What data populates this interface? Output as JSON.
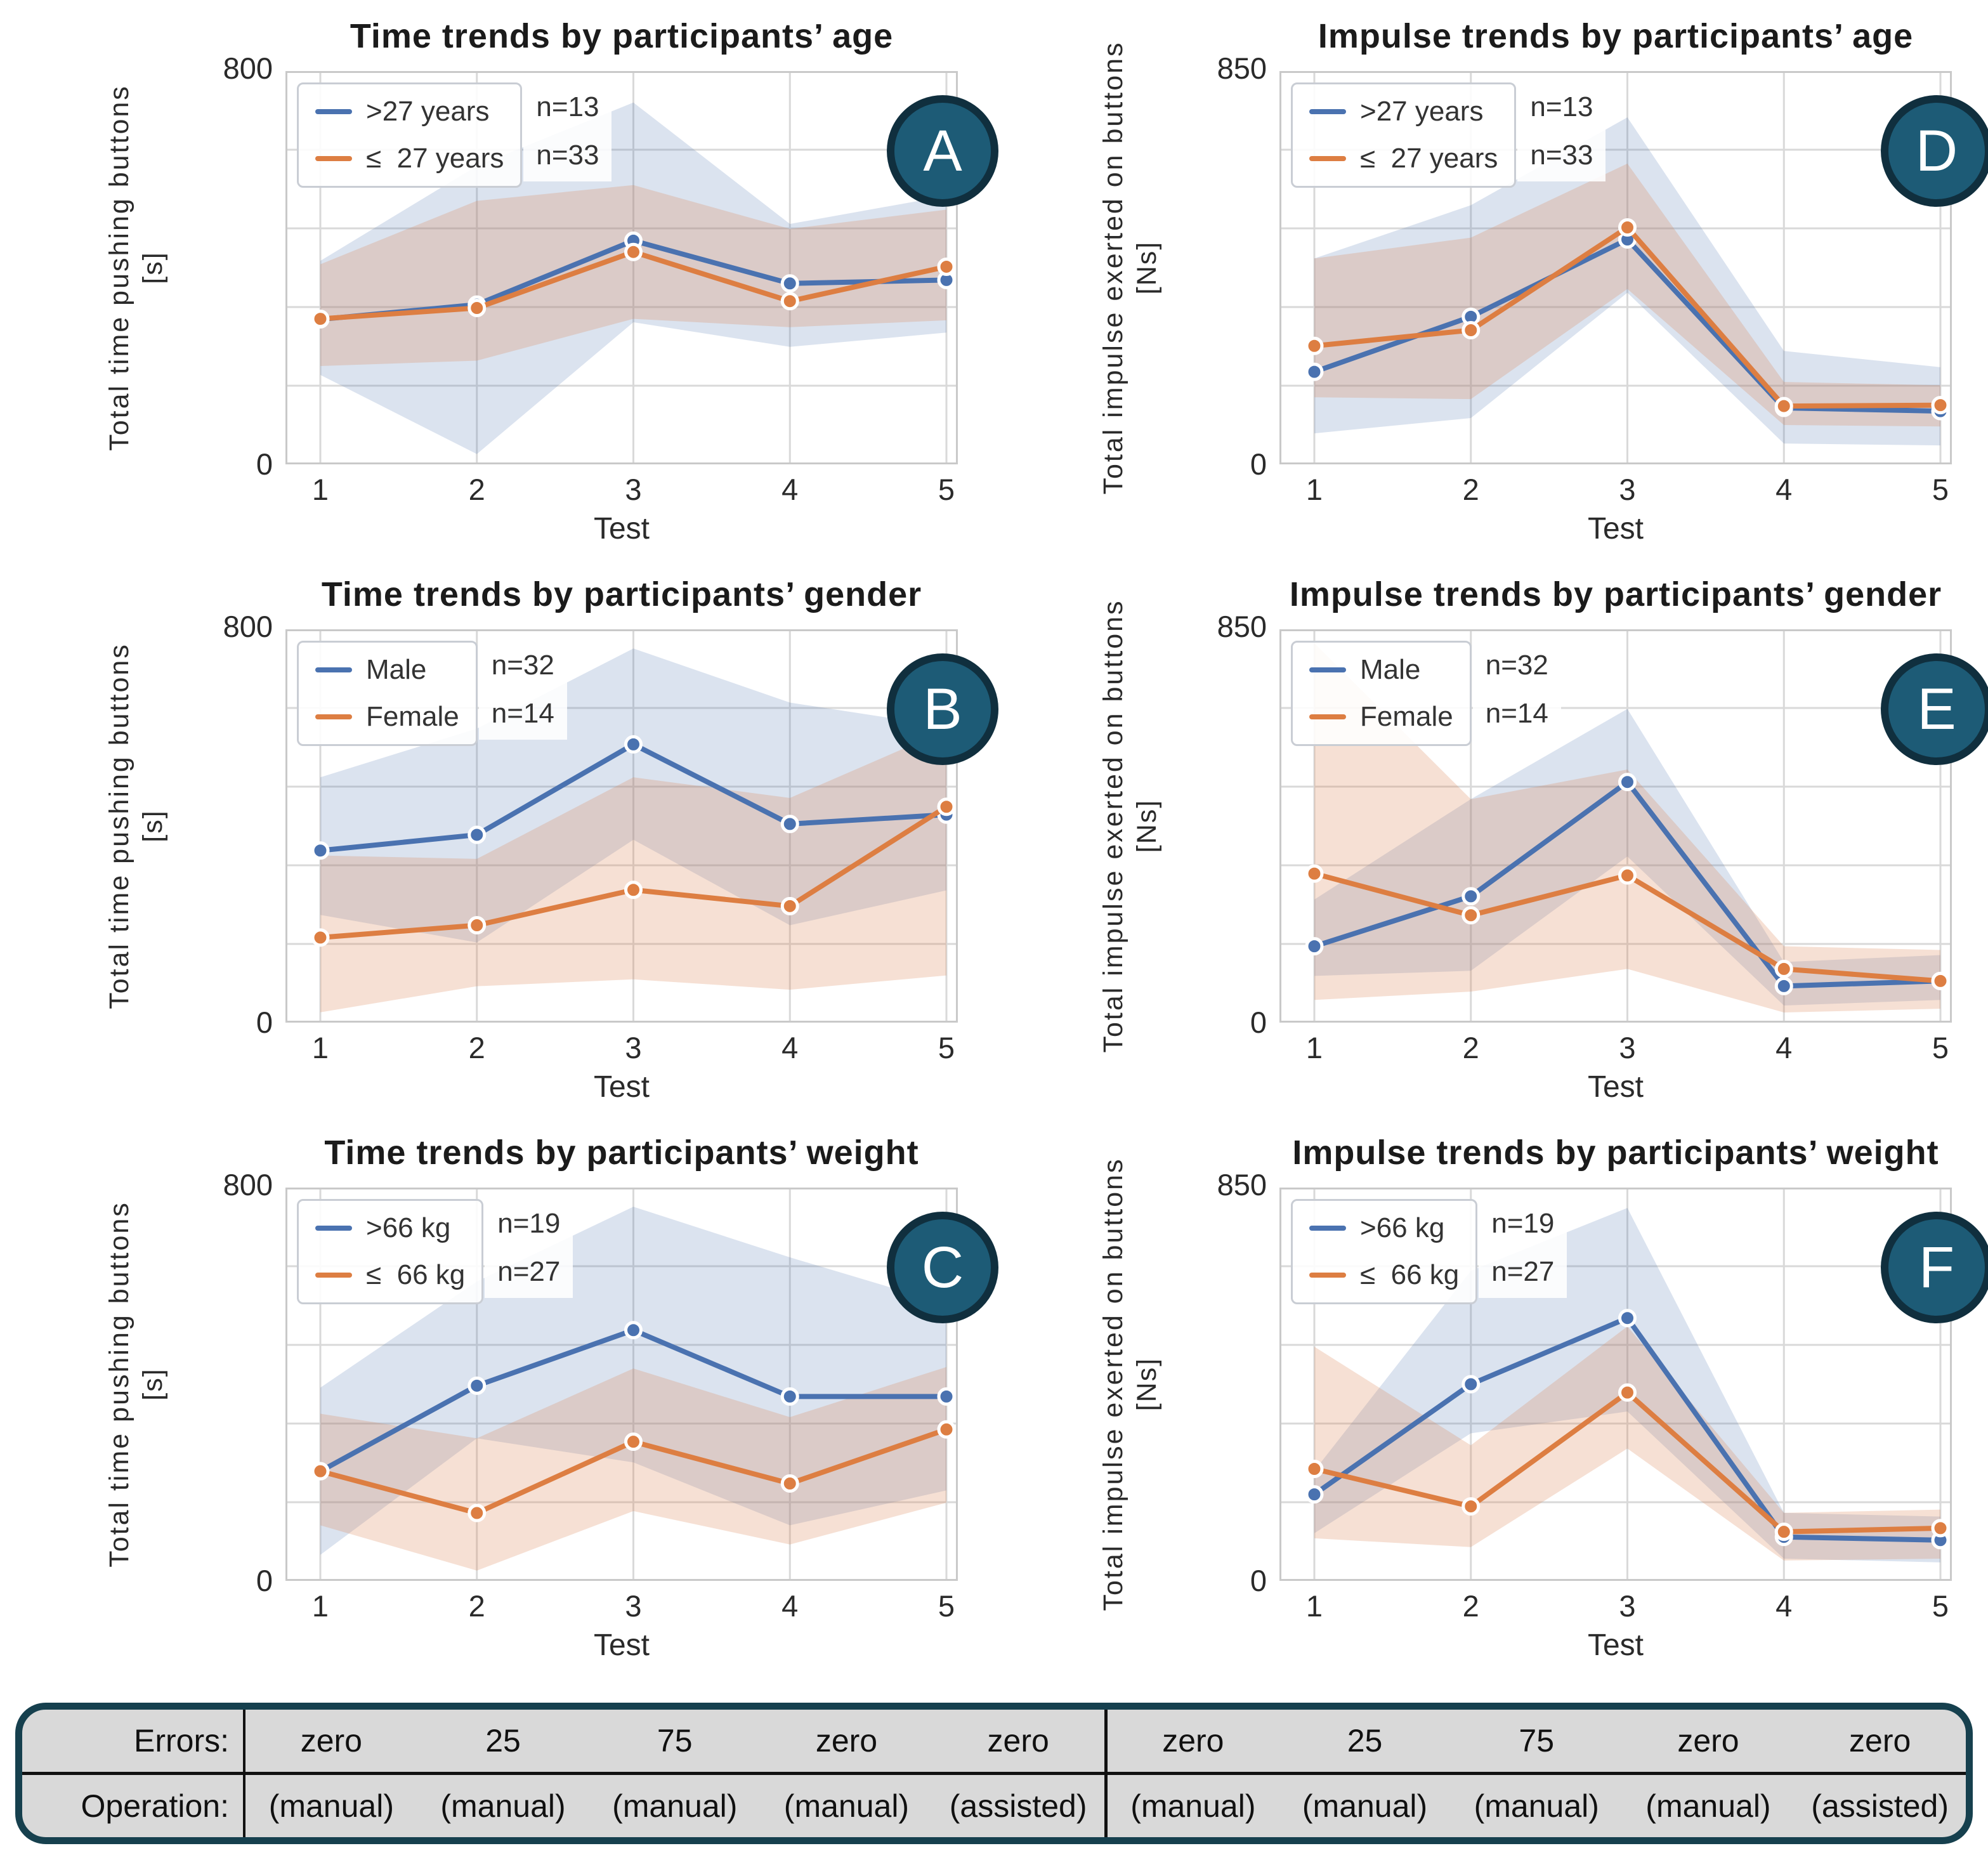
{
  "colors": {
    "blue": "#4a72b0",
    "orange": "#dd7e42",
    "blue_band": "rgba(76,114,176,0.20)",
    "orange_band": "rgba(221,132,82,0.25)",
    "badge_fill": "#1d5b76",
    "badge_border": "#102f3e",
    "grid_line": "#d9d9d9",
    "plot_border": "#c9c9c9",
    "table_bg": "#d9d9d9",
    "table_border": "#16404e"
  },
  "chart_data": [
    {
      "id": "A",
      "badge": "A",
      "type": "line",
      "title": "Time trends by participants’ age",
      "ylabel": "Total time pushing buttons",
      "yunit": "[s]",
      "ymax": 800,
      "ymax_label": "800",
      "y0_label": "0",
      "ylim": [
        0,
        800
      ],
      "xlabel": "Test",
      "x": [
        1,
        2,
        3,
        4,
        5
      ],
      "xticks": [
        "1",
        "2",
        "3",
        "4",
        "5"
      ],
      "grid": true,
      "legend_position": "upper left",
      "series": [
        {
          "name": ">27 years",
          "n": "n=13",
          "color": "blue",
          "values": [
            295,
            325,
            455,
            368,
            375
          ],
          "band_low": [
            182,
            21,
            289,
            239,
            268
          ],
          "band_high": [
            414,
            607,
            736,
            489,
            546
          ]
        },
        {
          "name": "≤  27 years",
          "n": "n=33",
          "color": "orange",
          "values": [
            296,
            318,
            432,
            332,
            402
          ],
          "band_low": [
            200,
            211,
            296,
            279,
            293
          ],
          "band_high": [
            407,
            536,
            568,
            479,
            518
          ]
        }
      ]
    },
    {
      "id": "D",
      "badge": "D",
      "type": "line",
      "title": "Impulse trends by participants’ age",
      "ylabel": "Total impulse exerted on buttons",
      "yunit": "[Ns]",
      "ymax": 850,
      "ymax_label": "850",
      "y0_label": "0",
      "ylim": [
        0,
        850
      ],
      "xlabel": "Test",
      "x": [
        1,
        2,
        3,
        4,
        5
      ],
      "xticks": [
        "1",
        "2",
        "3",
        "4",
        "5"
      ],
      "grid": true,
      "legend_position": "upper left",
      "series": [
        {
          "name": ">27 years",
          "n": "n=13",
          "color": "blue",
          "values": [
            200,
            319,
            486,
            122,
            115
          ],
          "band_low": [
            67,
            100,
            371,
            45,
            41
          ],
          "band_high": [
            445,
            560,
            750,
            245,
            210
          ]
        },
        {
          "name": "≤  27 years",
          "n": "n=33",
          "color": "orange",
          "values": [
            256,
            290,
            512,
            126,
            128
          ],
          "band_low": [
            145,
            141,
            379,
            85,
            82
          ],
          "band_high": [
            445,
            490,
            650,
            178,
            171
          ]
        }
      ]
    },
    {
      "id": "B",
      "badge": "B",
      "type": "line",
      "title": "Time trends by participants’ gender",
      "ylabel": "Total time pushing buttons",
      "yunit": "[s]",
      "ymax": 800,
      "ymax_label": "800",
      "y0_label": "0",
      "ylim": [
        0,
        800
      ],
      "xlabel": "Test",
      "x": [
        1,
        2,
        3,
        4,
        5
      ],
      "xticks": [
        "1",
        "2",
        "3",
        "4",
        "5"
      ],
      "grid": true,
      "legend_position": "upper left",
      "series": [
        {
          "name": "Male",
          "n": "n=32",
          "color": "blue",
          "values": [
            350,
            382,
            566,
            404,
            423
          ],
          "band_low": [
            219,
            163,
            372,
            198,
            269
          ],
          "band_high": [
            499,
            598,
            761,
            651,
            602
          ]
        },
        {
          "name": "Female",
          "n": "n=14",
          "color": "orange",
          "values": [
            173,
            198,
            270,
            237,
            439
          ],
          "band_low": [
            21,
            74,
            88,
            67,
            96
          ],
          "band_high": [
            340,
            333,
            499,
            457,
            595
          ]
        }
      ]
    },
    {
      "id": "E",
      "badge": "E",
      "type": "line",
      "title": "Impulse trends by participants’ gender",
      "ylabel": "Total impulse exerted on buttons",
      "yunit": "[Ns]",
      "ymax": 850,
      "ymax_label": "850",
      "y0_label": "0",
      "ylim": [
        0,
        850
      ],
      "xlabel": "Test",
      "x": [
        1,
        2,
        3,
        4,
        5
      ],
      "xticks": [
        "1",
        "2",
        "3",
        "4",
        "5"
      ],
      "grid": true,
      "legend_position": "upper left",
      "series": [
        {
          "name": "Male",
          "n": "n=32",
          "color": "blue",
          "values": [
            165,
            273,
            520,
            79,
            90
          ],
          "band_low": [
            101,
            112,
            359,
            37,
            49
          ],
          "band_high": [
            266,
            483,
            678,
            131,
            146
          ]
        },
        {
          "name": "Female",
          "n": "n=14",
          "color": "orange",
          "values": [
            322,
            232,
            318,
            116,
            90
          ],
          "band_low": [
            49,
            67,
            116,
            22,
            30
          ],
          "band_high": [
            820,
            483,
            547,
            165,
            157
          ]
        }
      ]
    },
    {
      "id": "C",
      "badge": "C",
      "type": "line",
      "title": "Time trends by participants’ weight",
      "ylabel": "Total time pushing buttons",
      "yunit": "[s]",
      "ymax": 800,
      "ymax_label": "800",
      "y0_label": "0",
      "ylim": [
        0,
        800
      ],
      "xlabel": "Test",
      "x": [
        1,
        2,
        3,
        4,
        5
      ],
      "xticks": [
        "1",
        "2",
        "3",
        "4",
        "5"
      ],
      "grid": true,
      "legend_position": "upper left",
      "series": [
        {
          "name": ">66 kg",
          "n": "n=19",
          "color": "blue",
          "values": [
            223,
            397,
            510,
            375,
            375
          ],
          "band_low": [
            53,
            290,
            241,
            113,
            184
          ],
          "band_high": [
            393,
            609,
            761,
            658,
            563
          ]
        },
        {
          "name": "≤  66 kg",
          "n": "n=27",
          "color": "orange",
          "values": [
            223,
            138,
            283,
            198,
            308
          ],
          "band_low": [
            113,
            21,
            142,
            74,
            159
          ],
          "band_high": [
            340,
            290,
            432,
            333,
            435
          ]
        }
      ]
    },
    {
      "id": "F",
      "badge": "F",
      "type": "line",
      "title": "Impulse trends by participants’ weight",
      "ylabel": "Total impulse exerted on buttons",
      "yunit": "[Ns]",
      "ymax": 850,
      "ymax_label": "850",
      "y0_label": "0",
      "ylim": [
        0,
        850
      ],
      "xlabel": "Test",
      "x": [
        1,
        2,
        3,
        4,
        5
      ],
      "xticks": [
        "1",
        "2",
        "3",
        "4",
        "5"
      ],
      "grid": true,
      "legend_position": "upper left",
      "series": [
        {
          "name": ">66 kg",
          "n": "n=19",
          "color": "blue",
          "values": [
            187,
            425,
            568,
            95,
            88
          ],
          "band_low": [
            103,
            319,
            366,
            48,
            40
          ],
          "band_high": [
            238,
            670,
            806,
            147,
            139
          ]
        },
        {
          "name": "≤  66 kg",
          "n": "n=27",
          "color": "orange",
          "values": [
            242,
            161,
            407,
            106,
            114
          ],
          "band_low": [
            92,
            73,
            286,
            44,
            48
          ],
          "band_high": [
            506,
            293,
            550,
            147,
            154
          ]
        }
      ]
    }
  ],
  "table": {
    "errors_label": "Errors:",
    "operation_label": "Operation:",
    "left_errors": [
      "zero",
      "25",
      "75",
      "zero",
      "zero"
    ],
    "left_operations": [
      "(manual)",
      "(manual)",
      "(manual)",
      "(manual)",
      "(assisted)"
    ],
    "right_errors": [
      "zero",
      "25",
      "75",
      "zero",
      "zero"
    ],
    "right_operations": [
      "(manual)",
      "(manual)",
      "(manual)",
      "(manual)",
      "(assisted)"
    ]
  }
}
